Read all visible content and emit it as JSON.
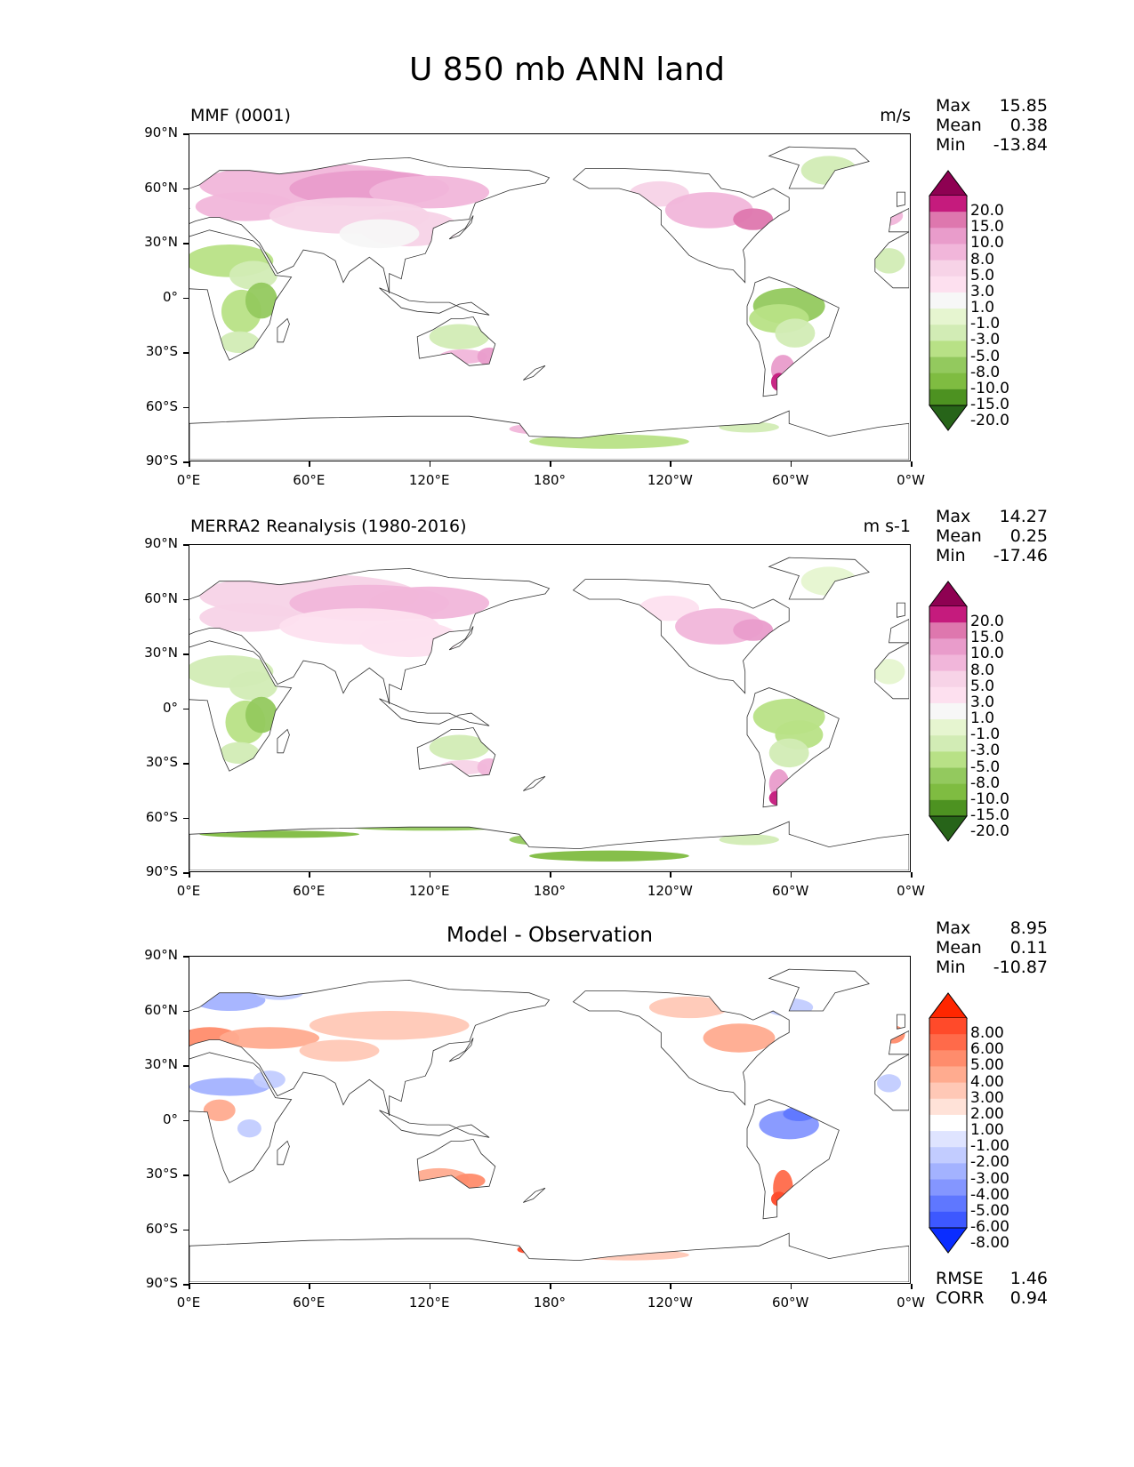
{
  "figure": {
    "title": "U 850 mb ANN land"
  },
  "axes": {
    "lat_labels": [
      "90°N",
      "60°N",
      "30°N",
      "0°",
      "30°S",
      "60°S",
      "90°S"
    ],
    "lon_labels": [
      "0°E",
      "60°E",
      "120°E",
      "180°",
      "120°W",
      "60°W",
      "0°W"
    ]
  },
  "panels": [
    {
      "subtitle": "MMF (0001)",
      "units": "m/s",
      "stats": [
        {
          "label": "Max",
          "value": "15.85"
        },
        {
          "label": "Mean",
          "value": "0.38"
        },
        {
          "label": "Min",
          "value": "-13.84"
        }
      ],
      "colorbar": {
        "ticks": [
          "20.0",
          "15.0",
          "10.0",
          "8.0",
          "5.0",
          "3.0",
          "1.0",
          "-1.0",
          "-3.0",
          "-5.0",
          "-8.0",
          "-10.0",
          "-15.0",
          "-20.0"
        ],
        "colors": [
          "#8e0152",
          "#c51b7d",
          "#de77ae",
          "#e99ccb",
          "#f1b6da",
          "#f7d3e7",
          "#fde0ef",
          "#f7f7f7",
          "#e6f5d0",
          "#d2ecb5",
          "#b8e186",
          "#93c95e",
          "#7fbc41",
          "#4d9221",
          "#276419"
        ]
      }
    },
    {
      "subtitle": "MERRA2 Reanalysis (1980-2016)",
      "units": "m s-1",
      "stats": [
        {
          "label": "Max",
          "value": "14.27"
        },
        {
          "label": "Mean",
          "value": "0.25"
        },
        {
          "label": "Min",
          "value": "-17.46"
        }
      ],
      "colorbar": {
        "ticks": [
          "20.0",
          "15.0",
          "10.0",
          "8.0",
          "5.0",
          "3.0",
          "1.0",
          "-1.0",
          "-3.0",
          "-5.0",
          "-8.0",
          "-10.0",
          "-15.0",
          "-20.0"
        ],
        "colors": [
          "#8e0152",
          "#c51b7d",
          "#de77ae",
          "#e99ccb",
          "#f1b6da",
          "#f7d3e7",
          "#fde0ef",
          "#f7f7f7",
          "#e6f5d0",
          "#d2ecb5",
          "#b8e186",
          "#93c95e",
          "#7fbc41",
          "#4d9221",
          "#276419"
        ]
      }
    },
    {
      "subtitle": "Model - Observation",
      "units": "",
      "stats": [
        {
          "label": "Max",
          "value": "8.95"
        },
        {
          "label": "Mean",
          "value": "0.11"
        },
        {
          "label": "Min",
          "value": "-10.87"
        }
      ],
      "extra_stats": [
        {
          "label": "RMSE",
          "value": "1.46"
        },
        {
          "label": "CORR",
          "value": "0.94"
        }
      ],
      "colorbar": {
        "ticks": [
          "8.00",
          "6.00",
          "5.00",
          "4.00",
          "3.00",
          "2.00",
          "1.00",
          "-1.00",
          "-2.00",
          "-3.00",
          "-4.00",
          "-5.00",
          "-6.00",
          "-8.00"
        ],
        "colors": [
          "#ff2600",
          "#ff4a2a",
          "#ff6a4a",
          "#ff8c6c",
          "#ffab8f",
          "#ffc8b6",
          "#ffe2d8",
          "#ffffff",
          "#dfe4ff",
          "#c2ccff",
          "#a3b2ff",
          "#8496ff",
          "#5f77ff",
          "#3d58ff",
          "#0a2dff"
        ]
      }
    }
  ]
}
